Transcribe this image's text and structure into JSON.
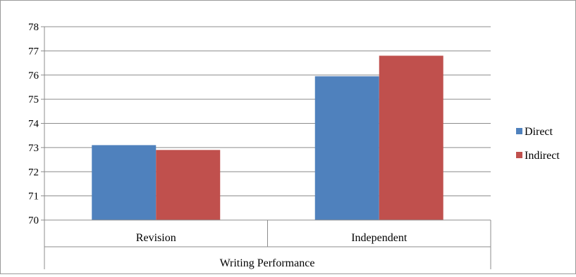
{
  "chart_data": {
    "type": "bar",
    "title": "",
    "xlabel": "Writing Performance",
    "ylabel": "",
    "categories": [
      "Revision",
      "Independent"
    ],
    "series": [
      {
        "name": "Direct",
        "color": "#4f81bd",
        "values": [
          73.1,
          75.95
        ]
      },
      {
        "name": "Indirect",
        "color": "#c0504d",
        "values": [
          72.9,
          76.8
        ]
      }
    ],
    "ylim": [
      70,
      78
    ],
    "yticks": [
      70,
      71,
      72,
      73,
      74,
      75,
      76,
      77,
      78
    ],
    "grid": true,
    "legend_position": "right"
  }
}
